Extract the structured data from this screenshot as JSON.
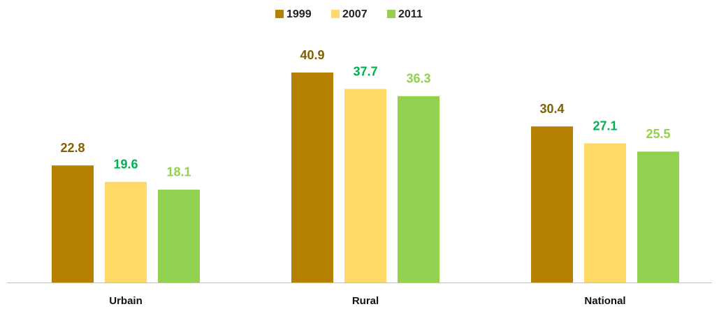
{
  "chart_data": {
    "type": "bar",
    "categories": [
      "Urbain",
      "Rural",
      "National"
    ],
    "series": [
      {
        "name": "1999",
        "color": "#b58000",
        "label_color": "#7f5f00",
        "values": [
          22.8,
          40.9,
          30.4
        ]
      },
      {
        "name": "2007",
        "color": "#ffd966",
        "label_color": "#00b050",
        "values": [
          19.6,
          37.7,
          27.1
        ]
      },
      {
        "name": "2011",
        "color": "#92d050",
        "label_color": "#92d050",
        "values": [
          18.1,
          36.3,
          25.5
        ]
      }
    ],
    "legend": "top"
  }
}
